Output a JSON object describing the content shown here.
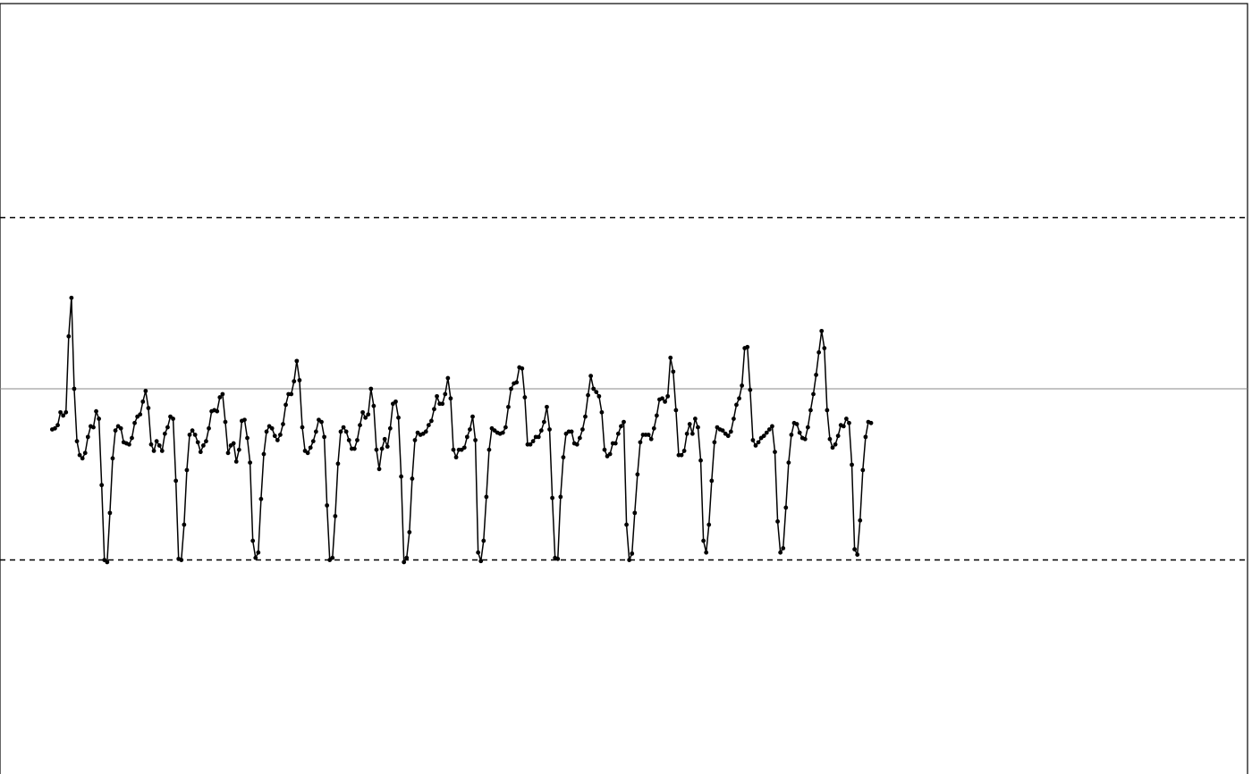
{
  "chart_data": {
    "type": "line",
    "title": "",
    "xlabel": "",
    "ylabel": "",
    "x_range": [
      -18,
      436
    ],
    "ylim": [
      -3.6,
      3.6
    ],
    "center_line": 0,
    "limits": {
      "upper": 1.6,
      "lower": -1.6
    },
    "grid": false,
    "legend": "none",
    "x_start": 1,
    "colors": {
      "line": "#000000",
      "marker": "#000000",
      "center_line": "#888888",
      "limit_line": "#000000",
      "frame": "#000000"
    },
    "values": [
      -0.38,
      -0.37,
      -0.34,
      -0.22,
      -0.25,
      -0.22,
      0.49,
      0.85,
      0.0,
      -0.49,
      -0.62,
      -0.65,
      -0.6,
      -0.45,
      -0.35,
      -0.36,
      -0.21,
      -0.28,
      -0.9,
      -1.6,
      -1.62,
      -1.16,
      -0.65,
      -0.39,
      -0.35,
      -0.37,
      -0.5,
      -0.51,
      -0.52,
      -0.46,
      -0.32,
      -0.26,
      -0.24,
      -0.12,
      -0.02,
      -0.18,
      -0.52,
      -0.58,
      -0.49,
      -0.53,
      -0.58,
      -0.42,
      -0.36,
      -0.26,
      -0.28,
      -0.86,
      -1.59,
      -1.6,
      -1.27,
      -0.76,
      -0.43,
      -0.39,
      -0.43,
      -0.5,
      -0.59,
      -0.53,
      -0.49,
      -0.37,
      -0.21,
      -0.2,
      -0.21,
      -0.08,
      -0.05,
      -0.31,
      -0.6,
      -0.53,
      -0.51,
      -0.68,
      -0.57,
      -0.3,
      -0.29,
      -0.46,
      -0.69,
      -1.42,
      -1.58,
      -1.53,
      -1.03,
      -0.61,
      -0.4,
      -0.35,
      -0.37,
      -0.44,
      -0.48,
      -0.43,
      -0.33,
      -0.15,
      -0.05,
      -0.05,
      0.07,
      0.26,
      0.08,
      -0.36,
      -0.58,
      -0.6,
      -0.55,
      -0.49,
      -0.4,
      -0.29,
      -0.31,
      -0.45,
      -1.09,
      -1.6,
      -1.58,
      -1.19,
      -0.7,
      -0.4,
      -0.36,
      -0.4,
      -0.48,
      -0.56,
      -0.56,
      -0.48,
      -0.34,
      -0.22,
      -0.27,
      -0.24,
      0.0,
      -0.16,
      -0.57,
      -0.75,
      -0.56,
      -0.47,
      -0.54,
      -0.37,
      -0.14,
      -0.12,
      -0.27,
      -0.82,
      -1.62,
      -1.58,
      -1.34,
      -0.84,
      -0.48,
      -0.41,
      -0.43,
      -0.42,
      -0.4,
      -0.34,
      -0.3,
      -0.19,
      -0.07,
      -0.14,
      -0.14,
      -0.05,
      0.1,
      -0.09,
      -0.57,
      -0.64,
      -0.57,
      -0.57,
      -0.55,
      -0.45,
      -0.38,
      -0.26,
      -0.48,
      -1.53,
      -1.61,
      -1.42,
      -1.01,
      -0.57,
      -0.37,
      -0.39,
      -0.41,
      -0.42,
      -0.41,
      -0.36,
      -0.17,
      0.0,
      0.05,
      0.06,
      0.2,
      0.19,
      -0.08,
      -0.52,
      -0.52,
      -0.49,
      -0.45,
      -0.45,
      -0.39,
      -0.31,
      -0.17,
      -0.38,
      -1.02,
      -1.58,
      -1.59,
      -1.01,
      -0.64,
      -0.42,
      -0.4,
      -0.4,
      -0.51,
      -0.52,
      -0.46,
      -0.38,
      -0.26,
      -0.06,
      0.12,
      0.0,
      -0.03,
      -0.07,
      -0.22,
      -0.57,
      -0.63,
      -0.61,
      -0.51,
      -0.51,
      -0.42,
      -0.35,
      -0.31,
      -1.27,
      -1.6,
      -1.54,
      -1.16,
      -0.8,
      -0.5,
      -0.43,
      -0.43,
      -0.43,
      -0.47,
      -0.37,
      -0.25,
      -0.1,
      -0.09,
      -0.12,
      -0.07,
      0.29,
      0.16,
      -0.2,
      -0.62,
      -0.62,
      -0.58,
      -0.42,
      -0.33,
      -0.42,
      -0.28,
      -0.36,
      -0.67,
      -1.42,
      -1.53,
      -1.27,
      -0.86,
      -0.5,
      -0.36,
      -0.38,
      -0.39,
      -0.42,
      -0.44,
      -0.4,
      -0.28,
      -0.15,
      -0.09,
      0.03,
      0.38,
      0.39,
      -0.01,
      -0.48,
      -0.53,
      -0.5,
      -0.46,
      -0.44,
      -0.41,
      -0.38,
      -0.35,
      -0.59,
      -1.24,
      -1.53,
      -1.49,
      -1.11,
      -0.69,
      -0.43,
      -0.32,
      -0.33,
      -0.41,
      -0.46,
      -0.47,
      -0.36,
      -0.2,
      -0.05,
      0.13,
      0.34,
      0.54,
      0.38,
      -0.2,
      -0.47,
      -0.55,
      -0.52,
      -0.44,
      -0.34,
      -0.35,
      -0.28,
      -0.32,
      -0.71,
      -1.5,
      -1.55,
      -1.23,
      -0.76,
      -0.45,
      -0.31,
      -0.32
    ]
  }
}
